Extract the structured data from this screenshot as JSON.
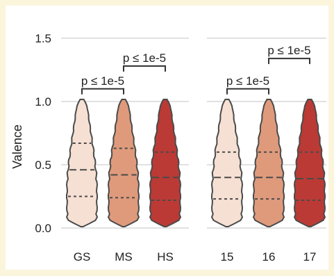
{
  "colors": {
    "background": "#fbf5dc",
    "panel": "#ffffff",
    "grid": "#cfcfcf",
    "outline": "#4a4a4a",
    "text": "#222222"
  },
  "chart_data": {
    "type": "violin",
    "ylabel": "Valence",
    "ylim": [
      0.0,
      1.5
    ],
    "yticks": [
      0.0,
      0.5,
      1.0,
      1.5
    ],
    "ytick_labels": [
      "0.0",
      "0.5",
      "1.0",
      "1.5"
    ],
    "grid": true,
    "panels": [
      {
        "categories": [
          "GS",
          "MS",
          "HS"
        ],
        "colors": [
          "#f6e0d3",
          "#df9a7c",
          "#bb3a35"
        ],
        "quartiles": [
          {
            "q1": 0.25,
            "median": 0.46,
            "q3": 0.67
          },
          {
            "q1": 0.24,
            "median": 0.42,
            "q3": 0.63
          },
          {
            "q1": 0.22,
            "median": 0.4,
            "q3": 0.6
          }
        ],
        "annotations": [
          {
            "text": "p ≤ 1e-5",
            "from": 0,
            "to": 1,
            "level": 1.1
          },
          {
            "text": "p ≤ 1e-5",
            "from": 1,
            "to": 2,
            "level": 1.28
          }
        ]
      },
      {
        "categories": [
          "15",
          "16",
          "17"
        ],
        "colors": [
          "#f6e0d3",
          "#df9a7c",
          "#bb3a35"
        ],
        "quartiles": [
          {
            "q1": 0.23,
            "median": 0.4,
            "q3": 0.6
          },
          {
            "q1": 0.23,
            "median": 0.4,
            "q3": 0.6
          },
          {
            "q1": 0.22,
            "median": 0.39,
            "q3": 0.6
          }
        ],
        "annotations": [
          {
            "text": "p ≤ 1e-5",
            "from": 0,
            "to": 1,
            "level": 1.1
          },
          {
            "text": "p ≤ 1e-5",
            "from": 1,
            "to": 2,
            "level": 1.34
          }
        ]
      }
    ]
  }
}
